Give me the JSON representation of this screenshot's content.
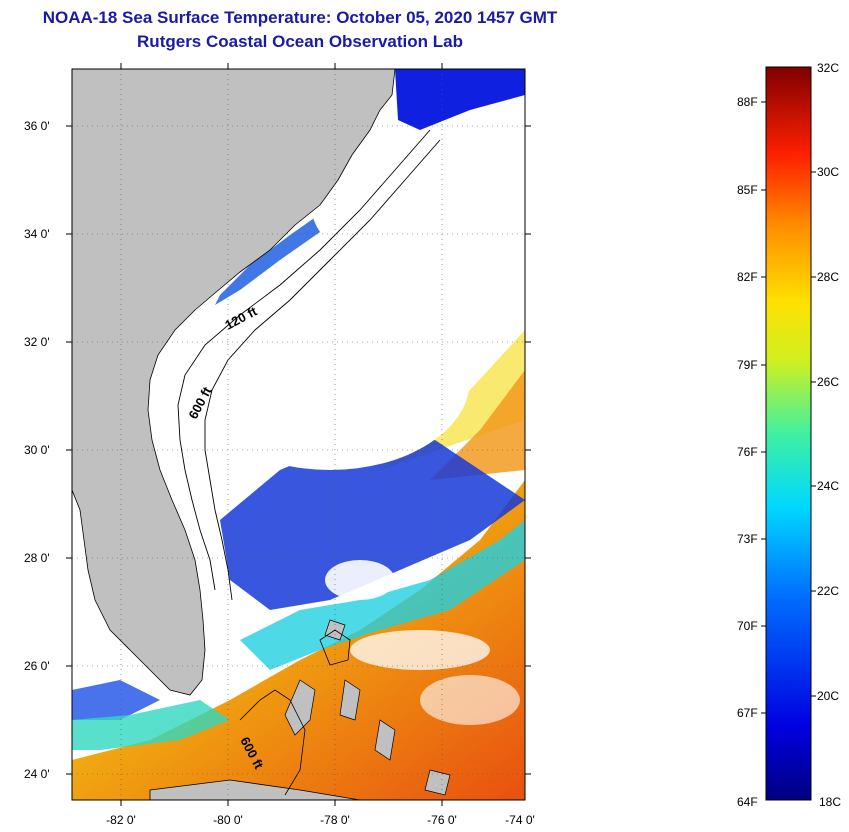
{
  "title": {
    "line1": "NOAA-18 Sea Surface Temperature:  October 05, 2020 1457 GMT",
    "line2": "Rutgers Coastal Ocean Observation Lab"
  },
  "map": {
    "lat_labels": [
      "36 0'",
      "34 0'",
      "32 0'",
      "30 0'",
      "28 0'",
      "26 0'",
      "24 0'"
    ],
    "lon_labels": [
      "-82 0'",
      "-80 0'",
      "-78 0'",
      "-76 0'",
      "-74 0'"
    ],
    "contour_labels": [
      "120 ft",
      "600 ft",
      "600 ft"
    ],
    "colors": {
      "land": "#c0c0c0",
      "cloud": "#ffffff",
      "cold": "#1010d0",
      "warm": "#f08010"
    }
  },
  "colorbar": {
    "celsius": [
      "32C",
      "30C",
      "28C",
      "26C",
      "24C",
      "22C",
      "20C",
      "18C"
    ],
    "fahrenheit": [
      "88F",
      "85F",
      "82F",
      "79F",
      "76F",
      "73F",
      "70F",
      "67F",
      "64F"
    ],
    "range_c": [
      18,
      32
    ]
  }
}
